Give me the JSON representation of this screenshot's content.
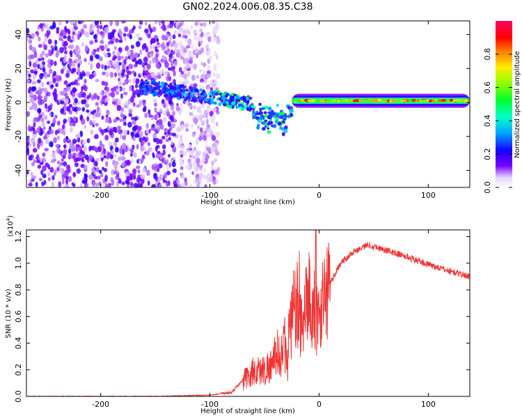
{
  "title": "GN02.2024.006.08.35.C38",
  "colors": {
    "snr_line": "#ee3333",
    "axes": "#000000",
    "background": "#ffffff"
  },
  "chart_data": [
    {
      "type": "heatmap",
      "name": "spectrogram",
      "xlabel": "Height of straight line (km)",
      "ylabel": "Frequency (Hz)",
      "xlim": [
        -268,
        138
      ],
      "ylim": [
        -50,
        48
      ],
      "xticks": [
        -200,
        -100,
        0,
        100
      ],
      "xtick_labels": [
        "-200",
        "-100",
        "0",
        "100"
      ],
      "yticks": [
        -40,
        -20,
        0,
        20,
        40
      ],
      "ytick_labels": [
        "-40",
        "-20",
        "0",
        "20",
        "40"
      ],
      "colorbar": {
        "label": "Normalized spectral amplitude",
        "range": [
          0,
          1
        ],
        "ticks": [
          0.0,
          0.2,
          0.4,
          0.6,
          0.8
        ],
        "tick_labels": [
          "0.0",
          "0.2",
          "0.4",
          "0.6",
          "0.8"
        ]
      },
      "features": [
        {
          "description": "broadband noise",
          "x_range": [
            -268,
            -98
          ],
          "freq_range": [
            -50,
            48
          ],
          "amplitude": 0.12
        },
        {
          "description": "tilted signal band",
          "x_range": [
            -165,
            -25
          ],
          "freq_center_start": 10,
          "freq_center_end": -5,
          "amplitude": 0.35
        },
        {
          "description": "steady tone",
          "x_range": [
            -25,
            138
          ],
          "freq_center": 1,
          "amplitude": 0.9
        }
      ]
    },
    {
      "type": "line",
      "name": "snr",
      "xlabel": "Height of straight line (km)",
      "ylabel": "SNR (10 * v/v)",
      "y_scale_label": "(x10",
      "y_scale_exponent": "4",
      "y_scale_suffix": ")",
      "xlim": [
        -268,
        138
      ],
      "ylim": [
        0,
        1.25
      ],
      "xticks": [
        -200,
        -100,
        0,
        100
      ],
      "xtick_labels": [
        "-200",
        "-100",
        "0",
        "100"
      ],
      "yticks": [
        0.0,
        0.2,
        0.4,
        0.6,
        0.8,
        1.0,
        1.2
      ],
      "ytick_labels": [
        "0.0",
        "0.2",
        "0.4",
        "0.6",
        "0.8",
        "1.0",
        "1.2"
      ],
      "series": [
        {
          "name": "SNR",
          "x": [
            -268,
            -250,
            -200,
            -150,
            -100,
            -80,
            -70,
            -60,
            -50,
            -40,
            -30,
            -25,
            -20,
            -15,
            -10,
            -5,
            0,
            10,
            20,
            30,
            45,
            60,
            80,
            100,
            120,
            138
          ],
          "y": [
            0.0,
            0.0,
            0.0,
            0.0,
            0.01,
            0.03,
            0.12,
            0.18,
            0.2,
            0.26,
            0.38,
            0.55,
            0.7,
            0.45,
            0.8,
            0.55,
            0.62,
            0.85,
            1.0,
            1.08,
            1.14,
            1.1,
            1.05,
            0.99,
            0.94,
            0.9
          ]
        }
      ]
    }
  ]
}
